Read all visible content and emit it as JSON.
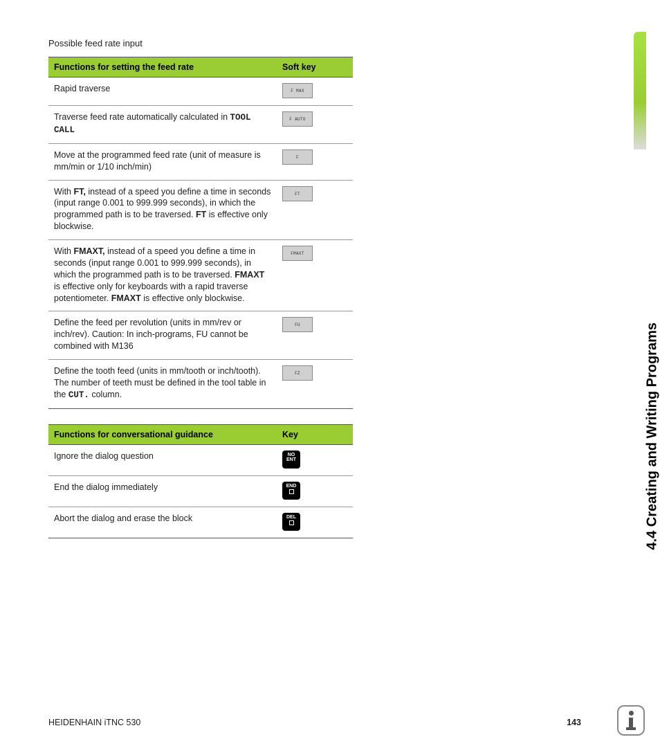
{
  "intro": "Possible feed rate input",
  "table1": {
    "head1": "Functions for setting the feed rate",
    "head2": "Soft key",
    "rows": [
      {
        "segs": [
          "Rapid traverse"
        ],
        "key": "F MAX"
      },
      {
        "segs": [
          "Traverse feed rate automatically calculated in ",
          {
            "b": "TOOL CALL",
            "cls": "tool"
          }
        ],
        "key": "F AUTO"
      },
      {
        "segs": [
          "Move at the programmed feed rate (unit of measure is mm/min or 1/10 inch/min)"
        ],
        "key": "F"
      },
      {
        "segs": [
          "With ",
          {
            "b": "FT,"
          },
          " instead of a speed you define a time in seconds (input range 0.001 to 999.999 seconds), in which the programmed path is to be traversed. ",
          {
            "b": "FT"
          },
          " is effective only blockwise."
        ],
        "key": "FT"
      },
      {
        "segs": [
          "With ",
          {
            "b": "FMAXT,"
          },
          " instead of a speed you define a time in seconds (input range 0.001 to 999.999 seconds), in which the programmed path is to be traversed. ",
          {
            "b": "FMAXT"
          },
          " is effective only for keyboards with a rapid traverse potentiometer. ",
          {
            "b": "FMAXT"
          },
          " is effective only blockwise."
        ],
        "key": "FMAXT"
      },
      {
        "segs": [
          "Define the feed per revolution (units in mm/rev or inch/rev). Caution: In inch-programs, FU cannot be combined with M136"
        ],
        "key": "FU"
      },
      {
        "segs": [
          "Define the tooth feed (units in mm/tooth or inch/tooth). The number of teeth must be defined in the tool table in the ",
          {
            "b": "CUT.",
            "cls": "tool"
          },
          " column."
        ],
        "key": "FZ"
      }
    ]
  },
  "table2": {
    "head1": "Functions for conversational guidance",
    "head2": "Key",
    "rows": [
      {
        "text": "Ignore the dialog question",
        "key": "NO ENT",
        "mode": "two"
      },
      {
        "text": "End the dialog immediately",
        "key": "END",
        "mode": "sq"
      },
      {
        "text": "Abort the dialog and erase the block",
        "key": "DEL",
        "mode": "sq"
      }
    ]
  },
  "side": "4.4 Creating and Writing Programs",
  "footer_left": "HEIDENHAIN iTNC 530",
  "footer_page": "143",
  "colors": {
    "header_bg": "#9ACD32",
    "softkey_bg": "#d0d0d0",
    "hardkey_bg": "#000000"
  }
}
